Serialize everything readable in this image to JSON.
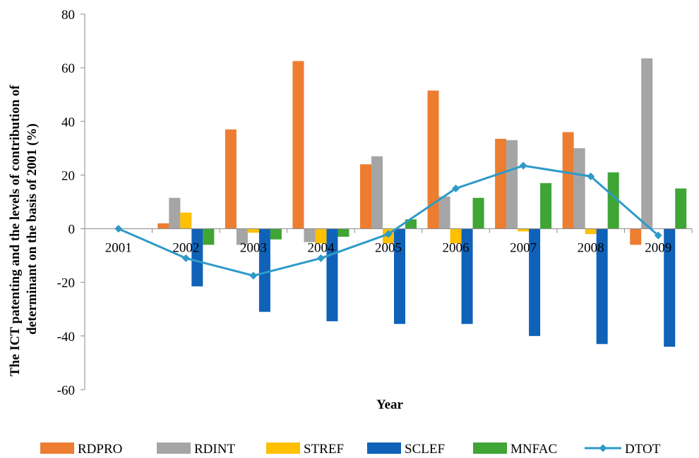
{
  "chart_data": {
    "type": "bar",
    "categories": [
      "2001",
      "2002",
      "2003",
      "2004",
      "2005",
      "2006",
      "2007",
      "2008",
      "2009"
    ],
    "xlabel": "Year",
    "ylabel_lines": [
      "The ICT patenting and the levels of contribution of",
      "determinant on the basis of 2001 (%)"
    ],
    "ylim": [
      -60,
      80
    ],
    "yticks": [
      -60,
      -40,
      -20,
      0,
      20,
      40,
      60,
      80
    ],
    "grid": false,
    "legend_position": "bottom",
    "series": [
      {
        "name": "RDPRO",
        "kind": "bar",
        "color": "#ED7D31",
        "values": [
          0,
          2,
          37,
          62.5,
          24,
          51.5,
          33.5,
          36,
          -6
        ]
      },
      {
        "name": "RDINT",
        "kind": "bar",
        "color": "#A5A5A5",
        "values": [
          0,
          11.5,
          -6,
          -5,
          27,
          12,
          33,
          30,
          63.5
        ]
      },
      {
        "name": "STREF",
        "kind": "bar",
        "color": "#FFC000",
        "values": [
          0,
          6,
          -1.5,
          -5.5,
          -5.5,
          -5.5,
          -1,
          -2,
          0
        ]
      },
      {
        "name": "SCLEF",
        "kind": "bar",
        "color": "#0F62B8",
        "values": [
          0,
          -21.5,
          -31,
          -34.5,
          -35.5,
          -35.5,
          -40,
          -43,
          -44
        ]
      },
      {
        "name": "MNFAC",
        "kind": "bar",
        "color": "#3FA535",
        "values": [
          0,
          -6,
          -4,
          -3,
          3.5,
          11.5,
          17,
          21,
          15
        ]
      },
      {
        "name": "DTOT",
        "kind": "line",
        "color": "#2E9AC9",
        "values": [
          0,
          -11,
          -17.5,
          -11,
          -2,
          15,
          23.5,
          19.5,
          -2.5
        ]
      }
    ]
  }
}
